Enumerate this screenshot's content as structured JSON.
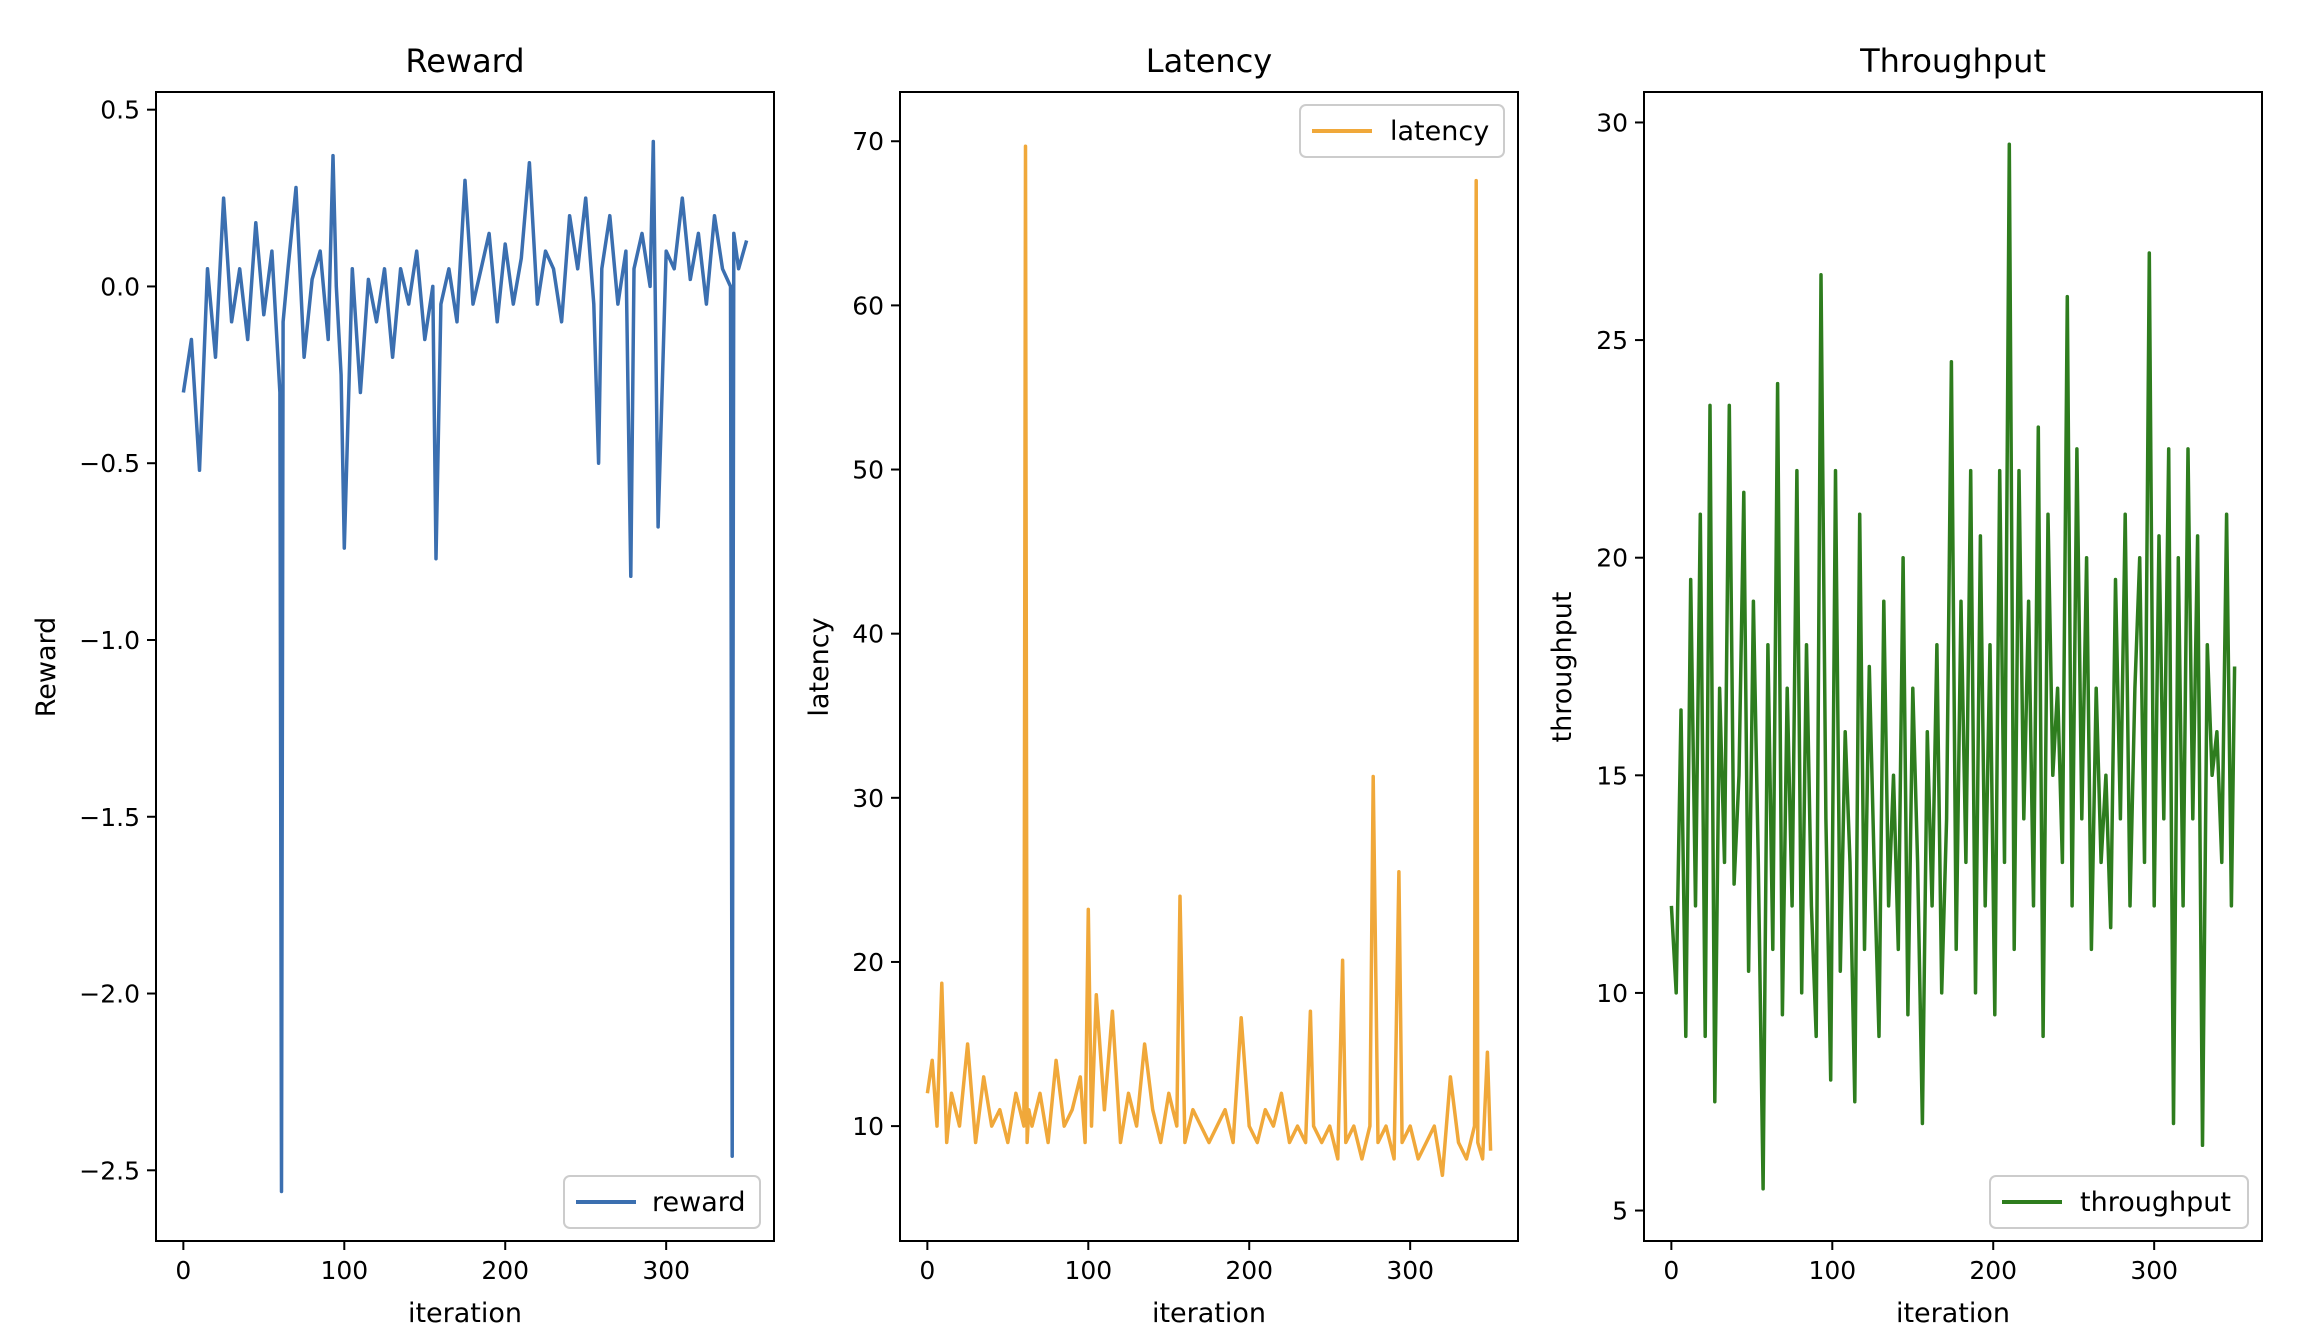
{
  "chart_data": [
    {
      "type": "line",
      "title": "Reward",
      "xlabel": "iteration",
      "ylabel": "Reward",
      "xlim": [
        -17,
        367
      ],
      "ylim": [
        -2.7,
        0.55
      ],
      "xticks": [
        0,
        100,
        200,
        300
      ],
      "xtick_labels": [
        "0",
        "100",
        "200",
        "300"
      ],
      "yticks": [
        -2.5,
        -2.0,
        -1.5,
        -1.0,
        -0.5,
        0.0,
        0.5
      ],
      "ytick_labels": [
        "−2.5",
        "−2.0",
        "−1.5",
        "−1.0",
        "−0.5",
        "0.0",
        "0.5"
      ],
      "grid": false,
      "legend_position": "lower-right",
      "series": [
        {
          "name": "reward",
          "color": "#3b6fb0",
          "x": [
            0,
            5,
            10,
            15,
            20,
            25,
            30,
            35,
            40,
            45,
            50,
            55,
            60,
            61,
            62,
            65,
            70,
            75,
            80,
            85,
            90,
            93,
            95,
            98,
            100,
            105,
            110,
            115,
            120,
            125,
            130,
            135,
            140,
            145,
            150,
            155,
            157,
            160,
            165,
            170,
            175,
            180,
            185,
            190,
            195,
            200,
            205,
            210,
            215,
            220,
            225,
            230,
            235,
            240,
            245,
            250,
            255,
            258,
            260,
            265,
            270,
            275,
            278,
            280,
            285,
            290,
            292,
            295,
            300,
            305,
            310,
            315,
            320,
            325,
            330,
            335,
            340,
            341,
            342,
            345,
            350
          ],
          "y": [
            -0.3,
            -0.15,
            -0.52,
            0.05,
            -0.2,
            0.25,
            -0.1,
            0.05,
            -0.15,
            0.18,
            -0.08,
            0.1,
            -0.3,
            -2.56,
            -0.1,
            0.05,
            0.28,
            -0.2,
            0.02,
            0.1,
            -0.15,
            0.37,
            0.0,
            -0.25,
            -0.74,
            0.05,
            -0.3,
            0.02,
            -0.1,
            0.05,
            -0.2,
            0.05,
            -0.05,
            0.1,
            -0.15,
            0.0,
            -0.77,
            -0.05,
            0.05,
            -0.1,
            0.3,
            -0.05,
            0.05,
            0.15,
            -0.1,
            0.12,
            -0.05,
            0.08,
            0.35,
            -0.05,
            0.1,
            0.05,
            -0.1,
            0.2,
            0.05,
            0.25,
            -0.05,
            -0.5,
            0.05,
            0.2,
            -0.05,
            0.1,
            -0.82,
            0.05,
            0.15,
            0.0,
            0.41,
            -0.68,
            0.1,
            0.05,
            0.25,
            0.02,
            0.15,
            -0.05,
            0.2,
            0.05,
            0.0,
            -2.46,
            0.15,
            0.05,
            0.13
          ]
        }
      ]
    },
    {
      "type": "line",
      "title": "Latency",
      "xlabel": "iteration",
      "ylabel": "latency",
      "xlim": [
        -17,
        367
      ],
      "ylim": [
        3,
        73
      ],
      "xticks": [
        0,
        100,
        200,
        300
      ],
      "xtick_labels": [
        "0",
        "100",
        "200",
        "300"
      ],
      "yticks": [
        10,
        20,
        30,
        40,
        50,
        60,
        70
      ],
      "ytick_labels": [
        "10",
        "20",
        "30",
        "40",
        "50",
        "60",
        "70"
      ],
      "grid": false,
      "legend_position": "upper-right",
      "series": [
        {
          "name": "latency",
          "color": "#f0a83a",
          "x": [
            0,
            3,
            6,
            9,
            12,
            15,
            20,
            25,
            30,
            35,
            40,
            45,
            50,
            55,
            60,
            61,
            62,
            63,
            65,
            70,
            75,
            80,
            85,
            90,
            95,
            98,
            100,
            102,
            105,
            110,
            115,
            120,
            125,
            130,
            135,
            140,
            145,
            150,
            155,
            157,
            160,
            165,
            170,
            175,
            180,
            185,
            190,
            195,
            200,
            205,
            210,
            215,
            220,
            225,
            230,
            235,
            238,
            240,
            245,
            250,
            255,
            258,
            260,
            265,
            270,
            275,
            277,
            280,
            285,
            290,
            293,
            295,
            300,
            305,
            310,
            315,
            320,
            325,
            330,
            335,
            340,
            341,
            342,
            345,
            348,
            350
          ],
          "y": [
            12,
            14,
            10,
            18.7,
            9,
            12,
            10,
            15,
            9,
            13,
            10,
            11,
            9,
            12,
            10,
            69.7,
            9,
            11,
            10,
            12,
            9,
            14,
            10,
            11,
            13,
            9,
            23.2,
            10,
            18,
            11,
            17,
            9,
            12,
            10,
            15,
            11,
            9,
            12,
            10,
            24,
            9,
            11,
            10,
            9,
            10,
            11,
            9,
            16.6,
            10,
            9,
            11,
            10,
            12,
            9,
            10,
            9,
            17,
            10,
            9,
            10,
            8,
            20.1,
            9,
            10,
            8,
            10,
            31.3,
            9,
            10,
            8,
            25.5,
            9,
            10,
            8,
            9,
            10,
            7,
            13,
            9,
            8,
            10,
            67.6,
            9,
            8,
            14.5,
            8.5
          ]
        }
      ]
    },
    {
      "type": "line",
      "title": "Throughput",
      "xlabel": "iteration",
      "ylabel": "throughput",
      "xlim": [
        -17,
        367
      ],
      "ylim": [
        4.3,
        30.7
      ],
      "xticks": [
        0,
        100,
        200,
        300
      ],
      "xtick_labels": [
        "0",
        "100",
        "200",
        "300"
      ],
      "yticks": [
        5,
        10,
        15,
        20,
        25,
        30
      ],
      "ytick_labels": [
        "5",
        "10",
        "15",
        "20",
        "25",
        "30"
      ],
      "grid": false,
      "legend_position": "lower-right",
      "series": [
        {
          "name": "throughput",
          "color": "#2e7d1e",
          "x": [
            0,
            3,
            6,
            9,
            12,
            15,
            18,
            21,
            24,
            27,
            30,
            33,
            36,
            39,
            42,
            45,
            48,
            51,
            54,
            57,
            60,
            63,
            66,
            69,
            72,
            75,
            78,
            81,
            84,
            87,
            90,
            93,
            96,
            99,
            102,
            105,
            108,
            111,
            114,
            117,
            120,
            123,
            126,
            129,
            132,
            135,
            138,
            141,
            144,
            147,
            150,
            153,
            156,
            159,
            162,
            165,
            168,
            171,
            174,
            177,
            180,
            183,
            186,
            189,
            192,
            195,
            198,
            201,
            204,
            207,
            210,
            213,
            216,
            219,
            222,
            225,
            228,
            231,
            234,
            237,
            240,
            243,
            246,
            249,
            252,
            255,
            258,
            261,
            264,
            267,
            270,
            273,
            276,
            279,
            282,
            285,
            288,
            291,
            294,
            297,
            300,
            303,
            306,
            309,
            312,
            315,
            318,
            321,
            324,
            327,
            330,
            333,
            336,
            339,
            342,
            345,
            348,
            350
          ],
          "y": [
            12,
            10,
            16.5,
            9,
            19.5,
            12,
            21,
            9,
            23.5,
            7.5,
            17,
            13,
            23.5,
            12.5,
            15,
            21.5,
            10.5,
            19,
            13,
            5.5,
            18,
            11,
            24,
            9.5,
            17,
            12,
            22,
            10,
            18,
            12,
            9,
            26.5,
            14,
            8,
            22,
            10.5,
            16,
            13,
            7.5,
            21,
            11,
            17.5,
            13,
            9,
            19,
            12,
            15,
            11,
            20,
            9.5,
            17,
            13,
            7,
            16,
            12,
            18,
            10,
            14,
            24.5,
            11,
            19,
            13,
            22,
            10,
            20.5,
            12,
            18,
            9.5,
            22,
            13,
            29.5,
            11,
            22,
            14,
            19,
            12,
            23,
            9,
            21,
            15,
            17,
            13,
            26,
            12,
            22.5,
            14,
            20,
            11,
            17,
            13,
            15,
            11.5,
            19.5,
            14,
            21,
            12,
            17,
            20,
            13,
            27,
            12,
            20.5,
            14,
            22.5,
            7,
            20,
            12,
            22.5,
            14,
            20.5,
            6.5,
            18,
            15,
            16,
            13,
            21,
            12,
            17.5
          ]
        }
      ]
    }
  ]
}
